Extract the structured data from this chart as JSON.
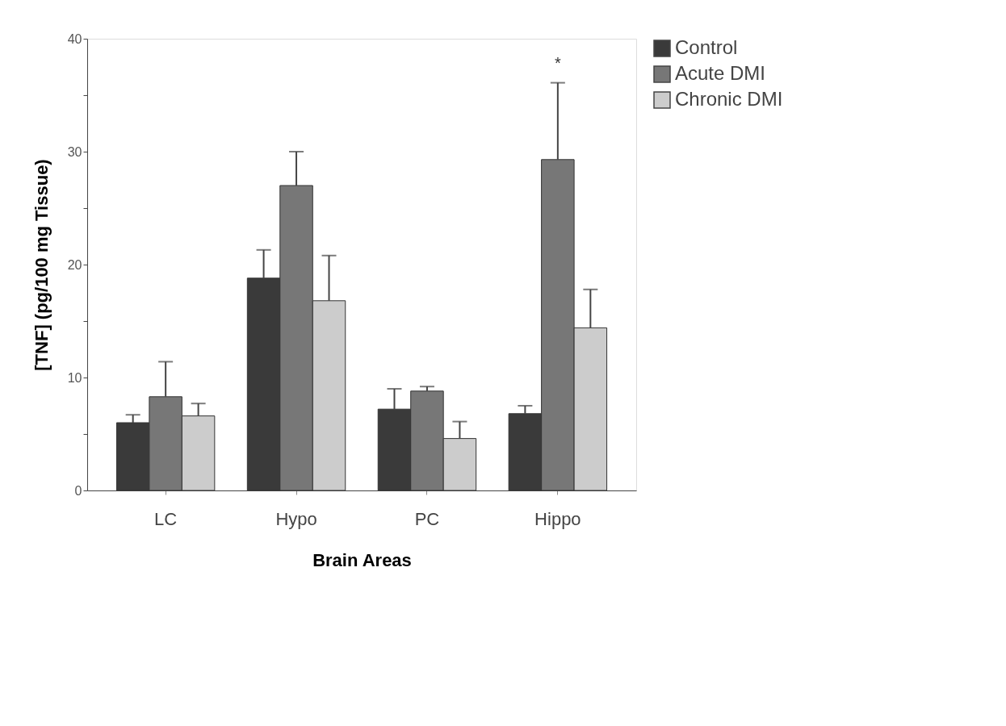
{
  "chart_data": {
    "type": "bar",
    "xlabel": "Brain Areas",
    "ylabel": "[TNF] (pg/100 mg Tissue)",
    "categories": [
      "LC",
      "Hypo",
      "PC",
      "Hippo"
    ],
    "series": [
      {
        "name": "Control",
        "color": "#3a3a3a",
        "values": [
          6.0,
          18.8,
          7.2,
          6.8
        ],
        "errors": [
          [
            6.0,
            6.7
          ],
          [
            18.8,
            21.3
          ],
          [
            7.2,
            9.0
          ],
          [
            6.8,
            7.5
          ]
        ]
      },
      {
        "name": "Acute DMI",
        "color": "#777777",
        "values": [
          8.3,
          27.0,
          8.8,
          29.3
        ],
        "errors": [
          [
            8.3,
            11.4
          ],
          [
            27.0,
            30.0
          ],
          [
            8.8,
            9.2
          ],
          [
            29.3,
            36.1
          ]
        ]
      },
      {
        "name": "Chronic DMI",
        "color": "#cccccc",
        "values": [
          6.6,
          16.8,
          4.6,
          14.4
        ],
        "errors": [
          [
            6.6,
            7.7
          ],
          [
            16.8,
            20.8
          ],
          [
            4.6,
            6.1
          ],
          [
            14.4,
            17.8
          ]
        ]
      }
    ],
    "ylim": [
      0,
      40
    ],
    "yticks": [
      0,
      {
        "value": 5,
        "label": null
      },
      10,
      {
        "value": 15,
        "label": null
      },
      20,
      {
        "value": 25,
        "label": null
      },
      30,
      {
        "value": 35,
        "label": null
      },
      40
    ],
    "grid": false,
    "legend": "right",
    "annotations": [
      {
        "text": "*",
        "x": "Hippo",
        "y": 36.1
      }
    ]
  }
}
